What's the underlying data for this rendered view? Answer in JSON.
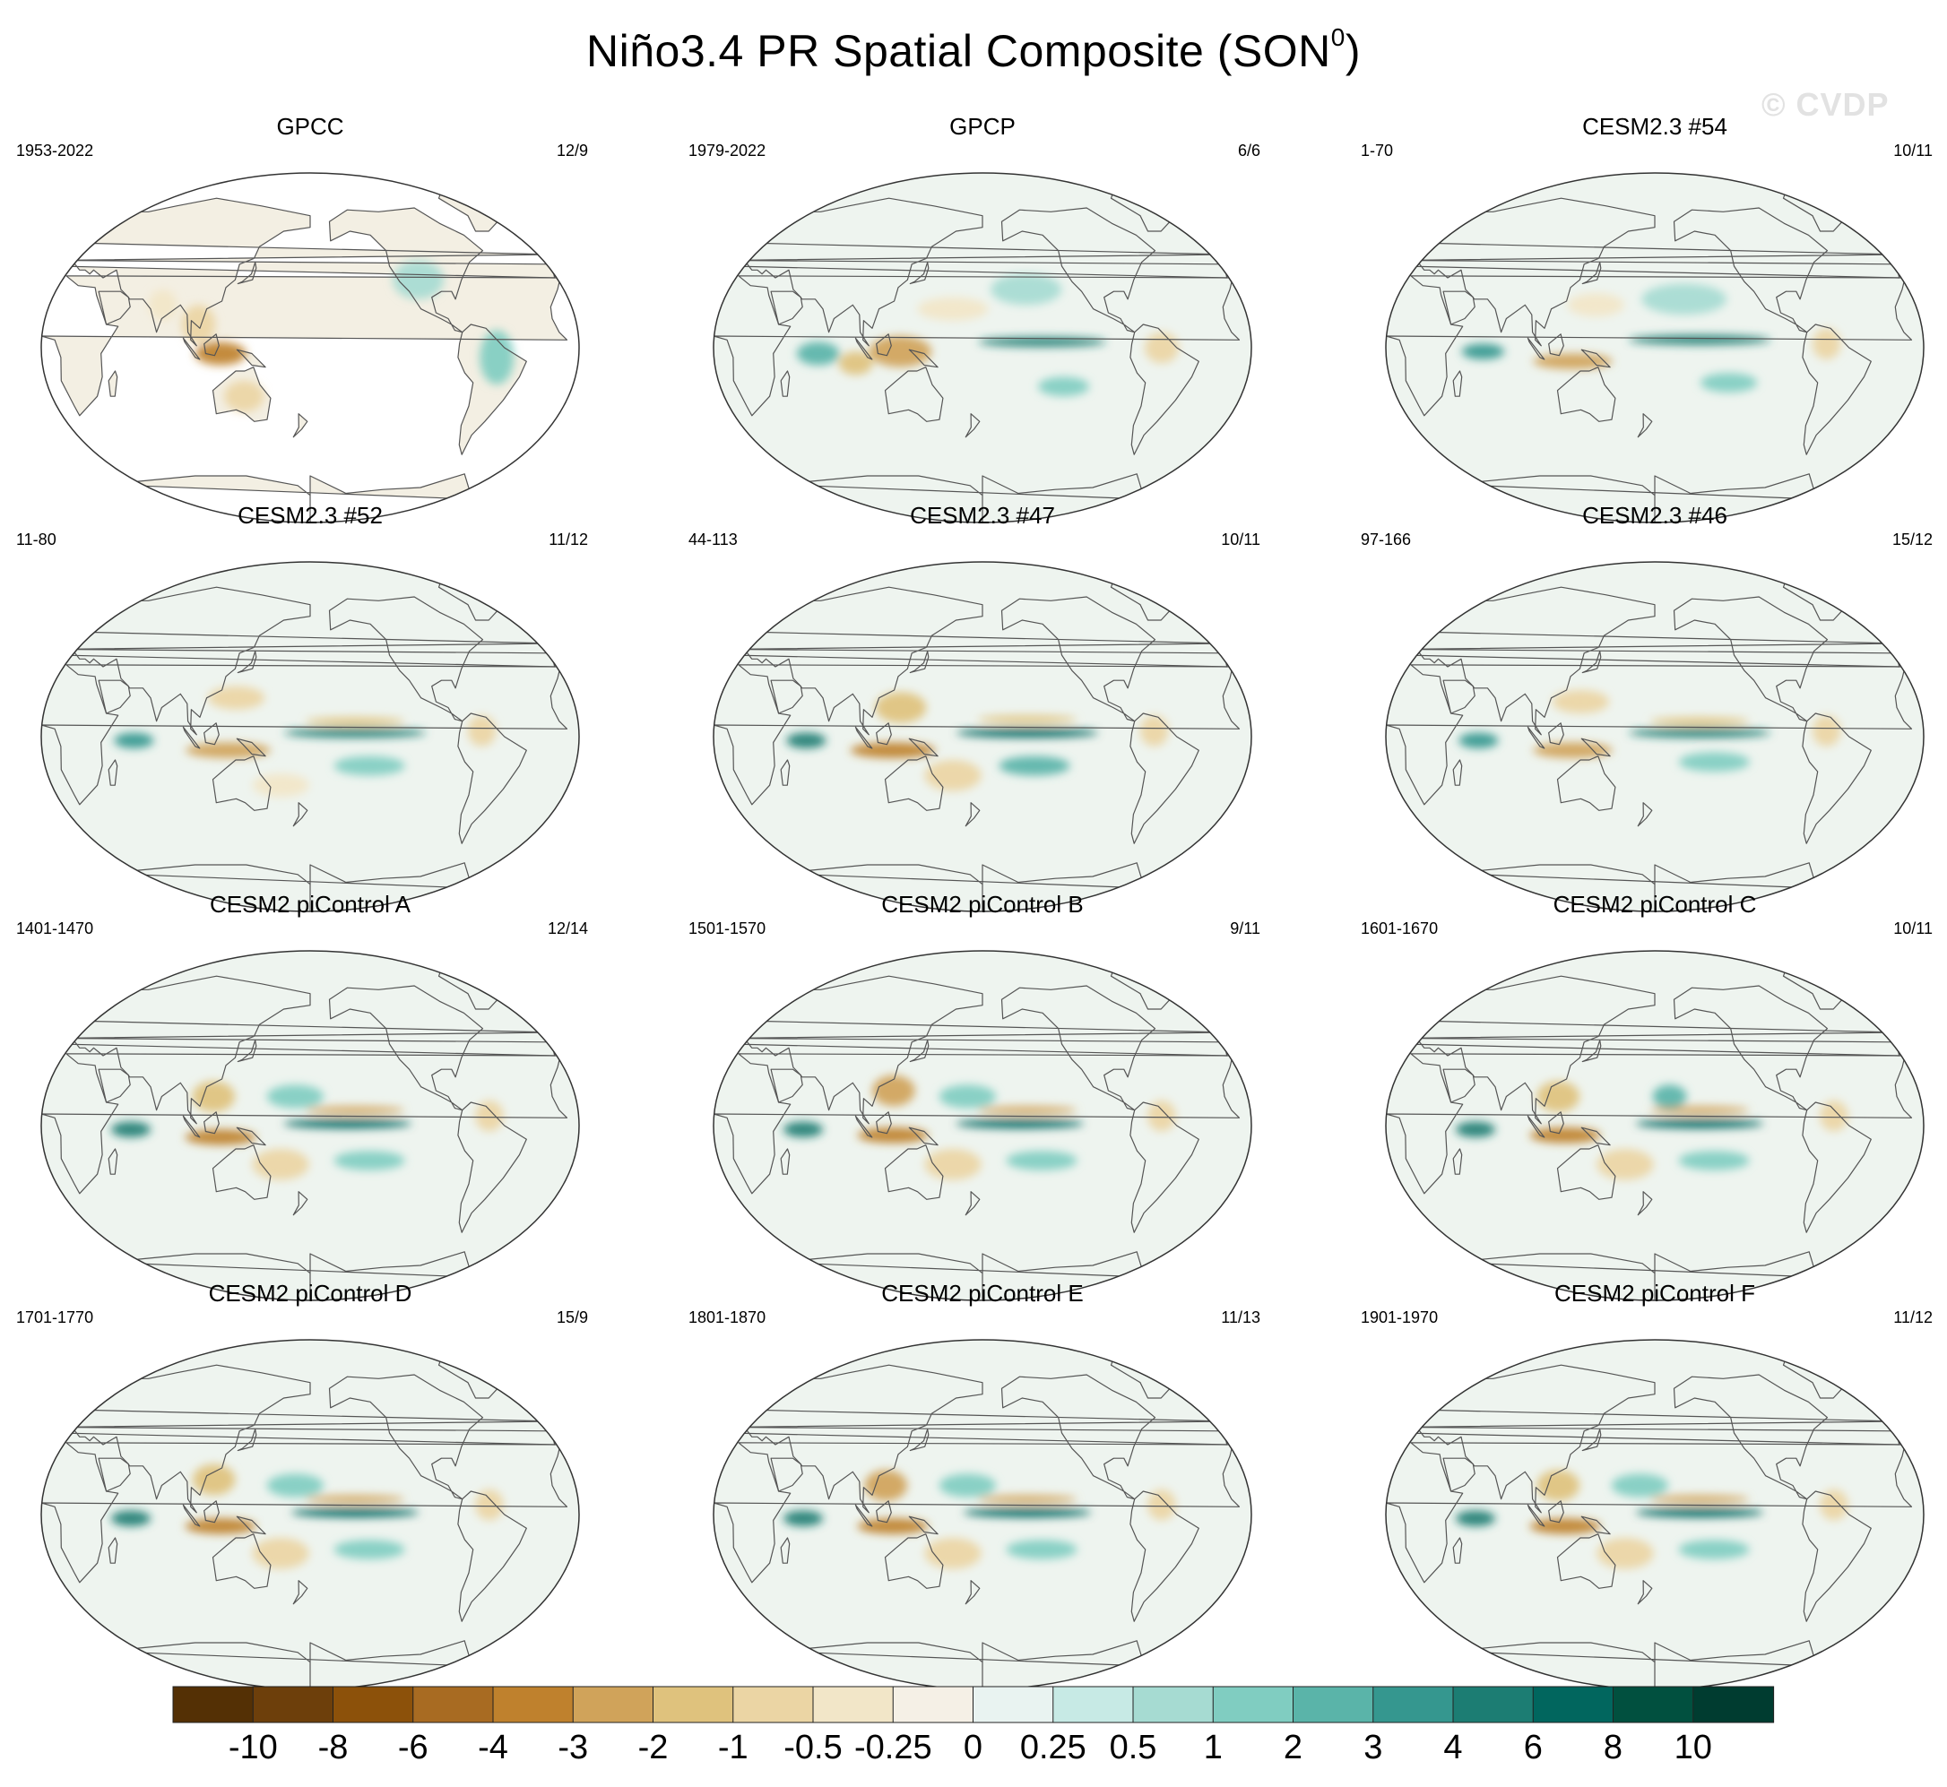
{
  "title": "Niño3.4 PR Spatial Composite (SON",
  "title_superscript": "0",
  "title_suffix": ")",
  "watermark": "© CVDP",
  "chart_data": {
    "type": "heatmap",
    "variable": "PR",
    "projection": "Robinson (Pacific-centered global maps)",
    "panels": [
      {
        "name": "GPCC",
        "period": "1953-2022",
        "count": "12/9",
        "coverage": "land-only",
        "features": [
          {
            "lon": 120,
            "lat": -3,
            "value": -4,
            "sx": 18,
            "sy": 6
          },
          {
            "lon": 105,
            "lat": 12,
            "value": -1,
            "sx": 12,
            "sy": 10
          },
          {
            "lon": 135,
            "lat": -25,
            "value": -1,
            "sx": 14,
            "sy": 8
          },
          {
            "lon": -55,
            "lat": -5,
            "value": 1,
            "sx": 12,
            "sy": 14
          },
          {
            "lon": -105,
            "lat": 35,
            "value": 0.5,
            "sx": 18,
            "sy": 10
          },
          {
            "lon": 80,
            "lat": 22,
            "value": -0.5,
            "sx": 10,
            "sy": 8
          }
        ]
      },
      {
        "name": "GPCP",
        "period": "1979-2022",
        "count": "6/6",
        "coverage": "global",
        "features": [
          {
            "lon": -140,
            "lat": 3,
            "value": 4,
            "sx": 45,
            "sy": 2.5
          },
          {
            "lon": 125,
            "lat": -2,
            "value": -3,
            "sx": 22,
            "sy": 8
          },
          {
            "lon": 70,
            "lat": -3,
            "value": 2,
            "sx": 15,
            "sy": 6
          },
          {
            "lon": 95,
            "lat": -8,
            "value": -2,
            "sx": 12,
            "sy": 6
          },
          {
            "lon": -125,
            "lat": -20,
            "value": 1,
            "sx": 18,
            "sy": 5
          },
          {
            "lon": -60,
            "lat": 0,
            "value": -1,
            "sx": 12,
            "sy": 8
          },
          {
            "lon": 160,
            "lat": 20,
            "value": -0.5,
            "sx": 25,
            "sy": 6
          },
          {
            "lon": -150,
            "lat": 30,
            "value": 0.5,
            "sx": 25,
            "sy": 8
          }
        ]
      },
      {
        "name": "CESM2.3 #54",
        "period": "1-70",
        "count": "10/11",
        "coverage": "global",
        "features": [
          {
            "lon": -150,
            "lat": 4,
            "value": 4,
            "sx": 50,
            "sy": 2.5
          },
          {
            "lon": 125,
            "lat": -7,
            "value": -3,
            "sx": 28,
            "sy": 4
          },
          {
            "lon": 65,
            "lat": -2,
            "value": 3,
            "sx": 15,
            "sy": 4
          },
          {
            "lon": -130,
            "lat": -18,
            "value": 1,
            "sx": 20,
            "sy": 5
          },
          {
            "lon": -65,
            "lat": 2,
            "value": -1,
            "sx": 10,
            "sy": 8
          },
          {
            "lon": 140,
            "lat": 22,
            "value": -0.5,
            "sx": 20,
            "sy": 6
          },
          {
            "lon": -160,
            "lat": 25,
            "value": 0.5,
            "sx": 30,
            "sy": 8
          }
        ]
      },
      {
        "name": "CESM2.3 #52",
        "period": "11-80",
        "count": "11/12",
        "coverage": "global",
        "features": [
          {
            "lon": -150,
            "lat": 2,
            "value": 4,
            "sx": 50,
            "sy": 2.5
          },
          {
            "lon": 125,
            "lat": -7,
            "value": -3,
            "sx": 30,
            "sy": 4
          },
          {
            "lon": 62,
            "lat": -2,
            "value": 3,
            "sx": 14,
            "sy": 4
          },
          {
            "lon": -140,
            "lat": -15,
            "value": 1.5,
            "sx": 25,
            "sy": 5
          },
          {
            "lon": -150,
            "lat": 8,
            "value": -1.5,
            "sx": 35,
            "sy": 2
          },
          {
            "lon": -65,
            "lat": 3,
            "value": -1,
            "sx": 10,
            "sy": 8
          },
          {
            "lon": 130,
            "lat": 20,
            "value": -1,
            "sx": 20,
            "sy": 6
          },
          {
            "lon": 160,
            "lat": -25,
            "value": -0.5,
            "sx": 20,
            "sy": 6
          }
        ]
      },
      {
        "name": "CESM2.3 #47",
        "period": "44-113",
        "count": "10/11",
        "coverage": "global",
        "features": [
          {
            "lon": -150,
            "lat": 2,
            "value": 6,
            "sx": 50,
            "sy": 2.5
          },
          {
            "lon": 120,
            "lat": -7,
            "value": -4,
            "sx": 30,
            "sy": 4
          },
          {
            "lon": 62,
            "lat": -2,
            "value": 4,
            "sx": 14,
            "sy": 4
          },
          {
            "lon": -145,
            "lat": -15,
            "value": 2,
            "sx": 25,
            "sy": 5
          },
          {
            "lon": -150,
            "lat": 9,
            "value": -2,
            "sx": 35,
            "sy": 2
          },
          {
            "lon": -65,
            "lat": 3,
            "value": -1,
            "sx": 10,
            "sy": 8
          },
          {
            "lon": 125,
            "lat": 15,
            "value": -2,
            "sx": 18,
            "sy": 8
          },
          {
            "lon": 160,
            "lat": -20,
            "value": -1,
            "sx": 20,
            "sy": 8
          }
        ]
      },
      {
        "name": "CESM2.3 #46",
        "period": "97-166",
        "count": "15/12",
        "coverage": "global",
        "features": [
          {
            "lon": -150,
            "lat": 2,
            "value": 4,
            "sx": 50,
            "sy": 2.5
          },
          {
            "lon": 125,
            "lat": -7,
            "value": -3,
            "sx": 28,
            "sy": 4
          },
          {
            "lon": 62,
            "lat": -2,
            "value": 3,
            "sx": 14,
            "sy": 4
          },
          {
            "lon": -140,
            "lat": -13,
            "value": 1.5,
            "sx": 25,
            "sy": 5
          },
          {
            "lon": -150,
            "lat": 8,
            "value": -1.5,
            "sx": 35,
            "sy": 2
          },
          {
            "lon": -65,
            "lat": 3,
            "value": -1,
            "sx": 10,
            "sy": 8
          },
          {
            "lon": 130,
            "lat": 18,
            "value": -1,
            "sx": 20,
            "sy": 6
          }
        ]
      },
      {
        "name": "CESM2 piControl A",
        "period": "1401-1470",
        "count": "12/14",
        "coverage": "global",
        "features": [
          {
            "lon": -155,
            "lat": 1,
            "value": 6,
            "sx": 45,
            "sy": 2.5
          },
          {
            "lon": 120,
            "lat": -6,
            "value": -4,
            "sx": 25,
            "sy": 4
          },
          {
            "lon": 60,
            "lat": -2,
            "value": 4,
            "sx": 14,
            "sy": 4
          },
          {
            "lon": -140,
            "lat": -18,
            "value": 1.5,
            "sx": 25,
            "sy": 5
          },
          {
            "lon": -150,
            "lat": 8,
            "value": -3,
            "sx": 35,
            "sy": 2
          },
          {
            "lon": -60,
            "lat": 5,
            "value": -1,
            "sx": 10,
            "sy": 8
          },
          {
            "lon": 115,
            "lat": 15,
            "value": -2,
            "sx": 15,
            "sy": 8
          },
          {
            "lon": 160,
            "lat": -20,
            "value": -1,
            "sx": 20,
            "sy": 8
          },
          {
            "lon": 170,
            "lat": 15,
            "value": 1,
            "sx": 20,
            "sy": 6
          }
        ]
      },
      {
        "name": "CESM2 piControl B",
        "period": "1501-1570",
        "count": "9/11",
        "coverage": "global",
        "features": [
          {
            "lon": -155,
            "lat": 1,
            "value": 6,
            "sx": 45,
            "sy": 2.5
          },
          {
            "lon": 120,
            "lat": -5,
            "value": -4,
            "sx": 25,
            "sy": 4
          },
          {
            "lon": 60,
            "lat": -2,
            "value": 4,
            "sx": 14,
            "sy": 4
          },
          {
            "lon": -140,
            "lat": -18,
            "value": 1.5,
            "sx": 25,
            "sy": 5
          },
          {
            "lon": -150,
            "lat": 8,
            "value": -3,
            "sx": 35,
            "sy": 2
          },
          {
            "lon": -60,
            "lat": 5,
            "value": -1,
            "sx": 10,
            "sy": 8
          },
          {
            "lon": 120,
            "lat": 18,
            "value": -3,
            "sx": 15,
            "sy": 8
          },
          {
            "lon": 160,
            "lat": -20,
            "value": -1,
            "sx": 20,
            "sy": 8
          },
          {
            "lon": 170,
            "lat": 15,
            "value": 1,
            "sx": 20,
            "sy": 6
          }
        ]
      },
      {
        "name": "CESM2 piControl C",
        "period": "1601-1670",
        "count": "10/11",
        "coverage": "global",
        "features": [
          {
            "lon": -150,
            "lat": 1,
            "value": 6,
            "sx": 45,
            "sy": 2.5
          },
          {
            "lon": 120,
            "lat": -5,
            "value": -4,
            "sx": 25,
            "sy": 4
          },
          {
            "lon": 60,
            "lat": -2,
            "value": 4,
            "sx": 14,
            "sy": 4
          },
          {
            "lon": -140,
            "lat": -18,
            "value": 1.5,
            "sx": 25,
            "sy": 5
          },
          {
            "lon": -150,
            "lat": 8,
            "value": -3,
            "sx": 35,
            "sy": 2
          },
          {
            "lon": -60,
            "lat": 5,
            "value": -1,
            "sx": 10,
            "sy": 8
          },
          {
            "lon": 115,
            "lat": 15,
            "value": -2,
            "sx": 15,
            "sy": 8
          },
          {
            "lon": 160,
            "lat": -20,
            "value": -1,
            "sx": 20,
            "sy": 8
          },
          {
            "lon": -170,
            "lat": 15,
            "value": 2,
            "sx": 12,
            "sy": 6
          }
        ]
      },
      {
        "name": "CESM2 piControl D",
        "period": "1701-1770",
        "count": "15/9",
        "coverage": "global",
        "features": [
          {
            "lon": -150,
            "lat": 1,
            "value": 6,
            "sx": 45,
            "sy": 2.5
          },
          {
            "lon": 120,
            "lat": -6,
            "value": -4,
            "sx": 25,
            "sy": 4
          },
          {
            "lon": 60,
            "lat": -2,
            "value": 4,
            "sx": 14,
            "sy": 4
          },
          {
            "lon": -140,
            "lat": -18,
            "value": 1.5,
            "sx": 25,
            "sy": 5
          },
          {
            "lon": -150,
            "lat": 8,
            "value": -3,
            "sx": 35,
            "sy": 2
          },
          {
            "lon": -60,
            "lat": 5,
            "value": -1,
            "sx": 10,
            "sy": 8
          },
          {
            "lon": 115,
            "lat": 18,
            "value": -2,
            "sx": 15,
            "sy": 8
          },
          {
            "lon": 160,
            "lat": -20,
            "value": -1,
            "sx": 20,
            "sy": 8
          },
          {
            "lon": 170,
            "lat": 15,
            "value": 1,
            "sx": 20,
            "sy": 6
          }
        ]
      },
      {
        "name": "CESM2 piControl E",
        "period": "1801-1870",
        "count": "11/13",
        "coverage": "global",
        "features": [
          {
            "lon": -150,
            "lat": 1,
            "value": 6,
            "sx": 45,
            "sy": 2.5
          },
          {
            "lon": 120,
            "lat": -6,
            "value": -4,
            "sx": 25,
            "sy": 4
          },
          {
            "lon": 60,
            "lat": -2,
            "value": 4,
            "sx": 14,
            "sy": 4
          },
          {
            "lon": -140,
            "lat": -18,
            "value": 1.5,
            "sx": 25,
            "sy": 5
          },
          {
            "lon": -150,
            "lat": 8,
            "value": -3,
            "sx": 35,
            "sy": 2
          },
          {
            "lon": -60,
            "lat": 5,
            "value": -1,
            "sx": 10,
            "sy": 8
          },
          {
            "lon": 115,
            "lat": 15,
            "value": -3,
            "sx": 15,
            "sy": 8
          },
          {
            "lon": 160,
            "lat": -20,
            "value": -1,
            "sx": 20,
            "sy": 8
          },
          {
            "lon": 170,
            "lat": 15,
            "value": 1,
            "sx": 20,
            "sy": 6
          }
        ]
      },
      {
        "name": "CESM2 piControl F",
        "period": "1901-1970",
        "count": "11/12",
        "coverage": "global",
        "features": [
          {
            "lon": -150,
            "lat": 1,
            "value": 6,
            "sx": 45,
            "sy": 2.5
          },
          {
            "lon": 120,
            "lat": -6,
            "value": -4,
            "sx": 25,
            "sy": 4
          },
          {
            "lon": 60,
            "lat": -2,
            "value": 4,
            "sx": 14,
            "sy": 4
          },
          {
            "lon": -140,
            "lat": -18,
            "value": 1.5,
            "sx": 25,
            "sy": 5
          },
          {
            "lon": -150,
            "lat": 8,
            "value": -3,
            "sx": 35,
            "sy": 2
          },
          {
            "lon": -60,
            "lat": 5,
            "value": -1,
            "sx": 10,
            "sy": 8
          },
          {
            "lon": 115,
            "lat": 15,
            "value": -2,
            "sx": 15,
            "sy": 8
          },
          {
            "lon": 160,
            "lat": -20,
            "value": -1,
            "sx": 20,
            "sy": 8
          },
          {
            "lon": 170,
            "lat": 15,
            "value": 1,
            "sx": 20,
            "sy": 6
          }
        ]
      }
    ],
    "colorbar": {
      "levels": [
        "-10",
        "-8",
        "-6",
        "-4",
        "-3",
        "-2",
        "-1",
        "-0.5",
        "-0.25",
        "0",
        "0.25",
        "0.5",
        "1",
        "2",
        "3",
        "4",
        "6",
        "8",
        "10"
      ],
      "colors": [
        "#543005",
        "#6d3f0b",
        "#8c510a",
        "#a86b22",
        "#bf812d",
        "#d0a35a",
        "#dfc27d",
        "#ebd5a4",
        "#f2e6c8",
        "#f5f0e6",
        "#e9f3f1",
        "#c7eae5",
        "#a6dbd2",
        "#80cdc1",
        "#5ab4a9",
        "#35978f",
        "#1c7d73",
        "#01665e",
        "#01503f",
        "#003c30"
      ]
    }
  }
}
